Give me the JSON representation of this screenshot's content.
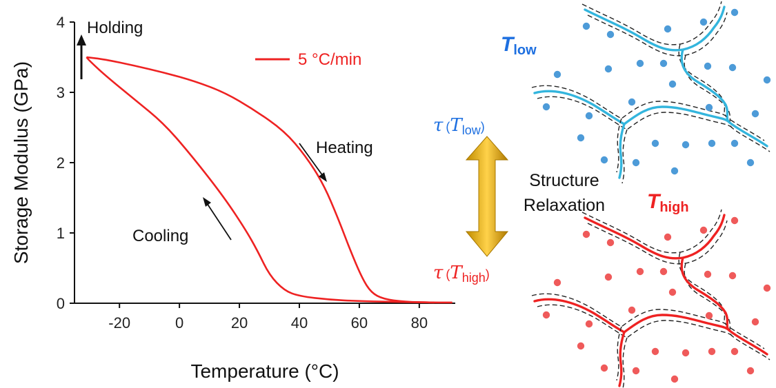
{
  "chart_data": {
    "type": "line",
    "xlabel": "Temperature (°C)",
    "ylabel": "Storage Modulus (GPa)",
    "xlim": [
      -35,
      92
    ],
    "ylim": [
      0,
      4
    ],
    "xticks": [
      -20,
      0,
      20,
      40,
      60,
      80
    ],
    "yticks": [
      0,
      1,
      2,
      3,
      4
    ],
    "legend": {
      "label": "5 °C/min",
      "placement": "top-center"
    },
    "series": [
      {
        "label": "Heating",
        "color": "#ee2222",
        "points": [
          [
            -31,
            3.5
          ],
          [
            -25,
            3.47
          ],
          [
            -15,
            3.38
          ],
          [
            -5,
            3.28
          ],
          [
            5,
            3.16
          ],
          [
            15,
            3.0
          ],
          [
            25,
            2.75
          ],
          [
            35,
            2.45
          ],
          [
            42,
            2.1
          ],
          [
            48,
            1.7
          ],
          [
            53,
            1.2
          ],
          [
            57,
            0.75
          ],
          [
            61,
            0.35
          ],
          [
            64,
            0.15
          ],
          [
            68,
            0.06
          ],
          [
            75,
            0.02
          ],
          [
            85,
            0.01
          ],
          [
            91,
            0.01
          ]
        ]
      },
      {
        "label": "Cooling",
        "color": "#ee2222",
        "points": [
          [
            85,
            0.01
          ],
          [
            70,
            0.02
          ],
          [
            60,
            0.03
          ],
          [
            50,
            0.05
          ],
          [
            40,
            0.1
          ],
          [
            35,
            0.18
          ],
          [
            30,
            0.4
          ],
          [
            26,
            0.75
          ],
          [
            22,
            1.05
          ],
          [
            15,
            1.5
          ],
          [
            5,
            2.05
          ],
          [
            -5,
            2.55
          ],
          [
            -15,
            2.9
          ],
          [
            -25,
            3.25
          ],
          [
            -30,
            3.45
          ],
          [
            -31,
            3.5
          ]
        ]
      }
    ],
    "annotations": [
      {
        "text": "Holding",
        "x": -31,
        "y": 3.95
      },
      {
        "text": "Heating",
        "x": 55,
        "y": 2.2
      },
      {
        "text": "Cooling",
        "x": 10,
        "y": 0.95
      }
    ]
  },
  "diagram": {
    "t_low": {
      "base": "T",
      "sub": "low",
      "color": "#1d6fe0"
    },
    "t_high": {
      "base": "T",
      "sub": "high",
      "color": "#ee2222"
    },
    "tau_low": {
      "symbol": "τ",
      "open": "(",
      "base": "T",
      "sub": "low",
      "close": ")",
      "color": "#1d6fe0"
    },
    "tau_high": {
      "symbol": "τ",
      "open": "(",
      "base": "T",
      "sub": "high",
      "close": ")",
      "color": "#ee2222"
    },
    "relaxation_line1": "Structure",
    "relaxation_line2": "Relaxation",
    "arrow_color": "#d9a400",
    "low_chain_color": "#33b5dd",
    "low_dot_color": "#4d9bd8",
    "high_chain_color": "#ee2222",
    "high_dot_color": "#ef5a5a"
  }
}
